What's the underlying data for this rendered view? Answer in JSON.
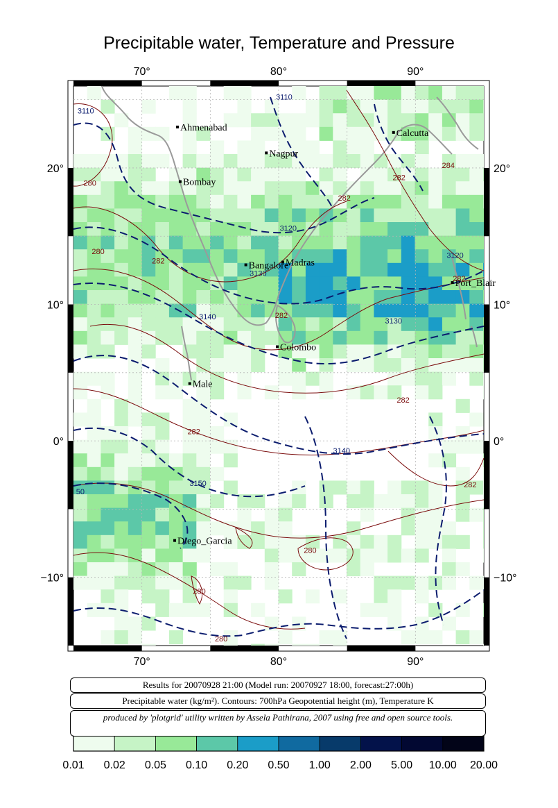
{
  "title": "Precipitable water, Temperature and Pressure",
  "map": {
    "lon_range": [
      65,
      95
    ],
    "lat_range": [
      -15,
      26
    ],
    "lon_ticks": [
      "70°",
      "80°",
      "90°"
    ],
    "lat_ticks": [
      "20°",
      "10°",
      "0°",
      "−10°"
    ],
    "grid": "dashed 5° gridlines",
    "colors": {
      "contour_temperature": "#7a0c0c",
      "contour_height": "#0b1c6e",
      "coastline": "#9a9a9a"
    },
    "cities": [
      {
        "name": "Ahmenabad",
        "lon": 72.6,
        "lat": 23.0
      },
      {
        "name": "Nagpur",
        "lon": 79.1,
        "lat": 21.1
      },
      {
        "name": "Calcutta",
        "lon": 88.4,
        "lat": 22.6
      },
      {
        "name": "Bombay",
        "lon": 72.8,
        "lat": 19.0
      },
      {
        "name": "Bangalore",
        "lon": 77.6,
        "lat": 12.9
      },
      {
        "name": "Madras",
        "lon": 80.3,
        "lat": 13.1
      },
      {
        "name": "Port_Blair",
        "lon": 92.7,
        "lat": 11.6
      },
      {
        "name": "Colombo",
        "lon": 79.9,
        "lat": 6.9
      },
      {
        "name": "Male",
        "lon": 73.5,
        "lat": 4.2
      },
      {
        "name": "Diego_Garcia",
        "lon": 72.4,
        "lat": -7.3
      }
    ],
    "contour_labels": [
      {
        "text": "3110",
        "lon": 65.9,
        "lat": 24.0,
        "kind": "height"
      },
      {
        "text": "3110",
        "lon": 80.4,
        "lat": 25.0,
        "kind": "height"
      },
      {
        "text": "280",
        "lon": 66.2,
        "lat": 18.7,
        "kind": "temp"
      },
      {
        "text": "280",
        "lon": 66.8,
        "lat": 13.7,
        "kind": "temp"
      },
      {
        "text": "282",
        "lon": 71.2,
        "lat": 13.0,
        "kind": "temp"
      },
      {
        "text": "3120",
        "lon": 80.7,
        "lat": 15.4,
        "kind": "height"
      },
      {
        "text": "3130",
        "lon": 78.5,
        "lat": 12.1,
        "kind": "height"
      },
      {
        "text": "282",
        "lon": 84.8,
        "lat": 17.6,
        "kind": "temp"
      },
      {
        "text": "282",
        "lon": 88.8,
        "lat": 19.1,
        "kind": "temp"
      },
      {
        "text": "284",
        "lon": 92.4,
        "lat": 20.0,
        "kind": "temp"
      },
      {
        "text": "3120",
        "lon": 92.9,
        "lat": 13.4,
        "kind": "height"
      },
      {
        "text": "282",
        "lon": 93.2,
        "lat": 11.7,
        "kind": "temp"
      },
      {
        "text": "3140",
        "lon": 74.8,
        "lat": 8.9,
        "kind": "height"
      },
      {
        "text": "282",
        "lon": 80.2,
        "lat": 9.0,
        "kind": "temp"
      },
      {
        "text": "3130",
        "lon": 88.4,
        "lat": 8.6,
        "kind": "height"
      },
      {
        "text": "282",
        "lon": 89.1,
        "lat": 2.8,
        "kind": "temp"
      },
      {
        "text": "282",
        "lon": 73.8,
        "lat": 0.5,
        "kind": "temp"
      },
      {
        "text": "3140",
        "lon": 84.6,
        "lat": -0.9,
        "kind": "height"
      },
      {
        "text": "3150",
        "lon": 74.1,
        "lat": -3.3,
        "kind": "height"
      },
      {
        "text": "50",
        "lon": 65.5,
        "lat": -3.9,
        "kind": "height"
      },
      {
        "text": "282",
        "lon": 94.0,
        "lat": -3.4,
        "kind": "temp"
      },
      {
        "text": "280",
        "lon": 82.3,
        "lat": -8.2,
        "kind": "temp"
      },
      {
        "text": "280",
        "lon": 74.2,
        "lat": -11.2,
        "kind": "temp"
      },
      {
        "text": "280",
        "lon": 75.8,
        "lat": -14.7,
        "kind": "temp"
      }
    ]
  },
  "info": {
    "line1": "Results for 20070928 21:00 (Model run: 20070927 18:00, forecast:27:00h)",
    "line2": "Precipitable water (kg/m²).  Contours: 700hPa Geopotential height (m), Temperature K",
    "line3": "produced by 'plotgrid' utility written by Assela Pathirana, 2007 using free and open source tools."
  },
  "colorbar": {
    "colors": [
      "#eefcee",
      "#c6f4c6",
      "#98e998",
      "#5cc8a8",
      "#1b9dc8",
      "#106aa0",
      "#073a6a",
      "#03124a",
      "#020832",
      "#020418"
    ],
    "labels": [
      "0.01",
      "0.02",
      "0.05",
      "0.10",
      "0.20",
      "0.50",
      "1.00",
      "2.00",
      "5.00",
      "10.00",
      "20.00"
    ]
  }
}
